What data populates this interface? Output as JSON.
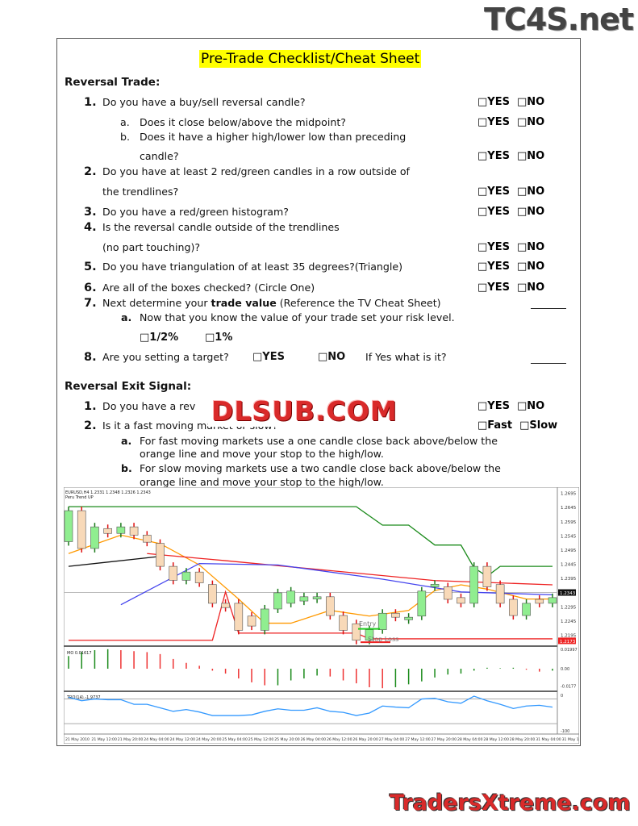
{
  "logos": {
    "top_right": "TC4S.net",
    "overlay": "DLSUB.COM",
    "bottom_right": "TradersXtreme.com"
  },
  "title": "Pre-Trade Checklist/Cheat Sheet",
  "reversal_trade": {
    "heading": "Reversal Trade:",
    "yes": "□YES",
    "no": "□NO",
    "q1": {
      "num": "1.",
      "text": "Do you have a buy/sell reversal candle?"
    },
    "q1a": {
      "num": "a.",
      "text": "Does it close below/above the midpoint?"
    },
    "q1b": {
      "num": "b.",
      "text": "Does it have a higher high/lower low than preceding",
      "text2": "candle?"
    },
    "q2": {
      "num": "2.",
      "text": "Do you have at least 2 red/green candles in a row outside of",
      "text2": "the trendlines?"
    },
    "q3": {
      "num": "3.",
      "text": "Do you have a red/green histogram?"
    },
    "q4": {
      "num": "4.",
      "text": "Is the reversal candle outside of the trendlines",
      "text2": "(no part touching)?"
    },
    "q5": {
      "num": "5.",
      "text": "Do you have triangulation of at least 35 degrees?(Triangle)"
    },
    "q6": {
      "num": "6.",
      "text": "Are all of the boxes checked? (Circle One)"
    },
    "q7": {
      "num": "7.",
      "pre": "Next determine your ",
      "bold": "trade value",
      "post": " (Reference the TV Cheat Sheet)"
    },
    "q7a": {
      "num": "a.",
      "text": "Now that you know the value of your trade set your risk level.",
      "opt1": "□1/2%",
      "opt2": "□1%"
    },
    "q8": {
      "num": "8.",
      "text": "Are you setting a target?",
      "yes": "□YES",
      "no": "□NO",
      "follow": "If Yes what is it?"
    }
  },
  "exit_signal": {
    "heading": "Reversal Exit Signal:",
    "q1": {
      "num": "1.",
      "text": "Do you have a rev",
      "yes": "□YES",
      "no": "□NO"
    },
    "q2": {
      "num": "2.",
      "text": "Is it a fast moving market or slow?",
      "fast": "□Fast",
      "slow": "□Slow"
    },
    "qa": {
      "num": "a.",
      "text": "For fast moving markets use a one candle close back above/below the",
      "text2": "orange line and move your stop to the high/low."
    },
    "qb": {
      "num": "b.",
      "text": "For slow moving markets use a two candle close back above/below the",
      "text2": "orange line and move your stop to the high/low."
    }
  },
  "chart_data": {
    "type": "candlestick",
    "symbol_line": "EURUSD,H4  1.2331 1.2348 1.2326 1.2343",
    "indicator_label": "Peru Trend UP",
    "price_ticks": [
      "1.2695",
      "1.2645",
      "1.2595",
      "1.2545",
      "1.2495",
      "1.2445",
      "1.2395",
      "1.2295",
      "1.2245",
      "1.2195"
    ],
    "current_price": "1.2343",
    "stop_price_label": "1.2173",
    "ylim": [
      1.216,
      1.2705
    ],
    "candles": [
      [
        1.2522,
        1.2631
      ],
      [
        1.2631,
        1.2498
      ],
      [
        1.2498,
        1.2574
      ],
      [
        1.2568,
        1.2551
      ],
      [
        1.2551,
        1.2574
      ],
      [
        1.2574,
        1.2545
      ],
      [
        1.2545,
        1.252
      ],
      [
        1.2516,
        1.2435
      ],
      [
        1.2435,
        1.2386
      ],
      [
        1.2386,
        1.2415
      ],
      [
        1.2415,
        1.2377
      ],
      [
        1.2371,
        1.2305
      ],
      [
        1.2305,
        1.229
      ],
      [
        1.2305,
        1.221
      ],
      [
        1.226,
        1.2225
      ],
      [
        1.221,
        1.2285
      ],
      [
        1.2285,
        1.2342
      ],
      [
        1.2305,
        1.2348
      ],
      [
        1.2313,
        1.2328
      ],
      [
        1.232,
        1.2328
      ],
      [
        1.2328,
        1.2262
      ],
      [
        1.2262,
        1.221
      ],
      [
        1.2233,
        1.2175
      ],
      [
        1.2175,
        1.2212
      ],
      [
        1.2212,
        1.227
      ],
      [
        1.227,
        1.2256
      ],
      [
        1.2247,
        1.2256
      ],
      [
        1.226,
        1.2348
      ],
      [
        1.2363,
        1.2372
      ],
      [
        1.2363,
        1.2319
      ],
      [
        1.2325,
        1.2305
      ],
      [
        1.2305,
        1.2435
      ],
      [
        1.2435,
        1.2363
      ],
      [
        1.2371,
        1.2305
      ],
      [
        1.2319,
        1.2262
      ],
      [
        1.2262,
        1.2305
      ],
      [
        1.2319,
        1.2305
      ],
      [
        1.2305,
        1.2325
      ]
    ],
    "lines": [
      {
        "color": "#1a8a1a",
        "points": [
          [
            0,
            1.2645
          ],
          [
            22,
            1.2645
          ],
          [
            24,
            1.258
          ],
          [
            26,
            1.258
          ],
          [
            28,
            1.251
          ],
          [
            30,
            1.251
          ],
          [
            31,
            1.243
          ],
          [
            32,
            1.24
          ],
          [
            33,
            1.2435
          ],
          [
            37,
            1.2435
          ]
        ]
      },
      {
        "color": "#ff9900",
        "points": [
          [
            0,
            1.248
          ],
          [
            4,
            1.2545
          ],
          [
            7,
            1.2515
          ],
          [
            10,
            1.244
          ],
          [
            13,
            1.232
          ],
          [
            15,
            1.2235
          ],
          [
            17,
            1.2235
          ],
          [
            20,
            1.228
          ],
          [
            23,
            1.226
          ],
          [
            26,
            1.228
          ],
          [
            28,
            1.235
          ],
          [
            30,
            1.237
          ],
          [
            32,
            1.2355
          ],
          [
            35,
            1.232
          ],
          [
            37,
            1.232
          ]
        ]
      },
      {
        "color": "#ee2222",
        "points": [
          [
            6,
            1.248
          ],
          [
            12,
            1.2455
          ],
          [
            20,
            1.242
          ],
          [
            28,
            1.2385
          ],
          [
            37,
            1.237
          ]
        ]
      },
      {
        "color": "#4444ee",
        "points": [
          [
            4,
            1.23
          ],
          [
            10,
            1.2445
          ],
          [
            16,
            1.244
          ],
          [
            24,
            1.239
          ],
          [
            30,
            1.2345
          ],
          [
            37,
            1.2335
          ]
        ]
      },
      {
        "color": "#111111",
        "points": [
          [
            0,
            1.2435
          ],
          [
            7,
            1.247
          ]
        ]
      },
      {
        "color": "#ee2222",
        "points": [
          [
            0,
            1.2175
          ],
          [
            11,
            1.2175
          ],
          [
            12,
            1.2345
          ],
          [
            13,
            1.22
          ],
          [
            22,
            1.22
          ],
          [
            23,
            1.218
          ],
          [
            37,
            1.218
          ]
        ]
      }
    ],
    "annotations": [
      "Entry",
      "Stop Loss"
    ],
    "mo": {
      "label": "MO 0.01617",
      "ticks": [
        "0.01997",
        "0.00",
        "-0.0177"
      ],
      "ylim": [
        -0.0215,
        0.0215
      ],
      "values": [
        0.013,
        0.017,
        0.019,
        0.02,
        0.019,
        0.018,
        0.017,
        0.015,
        0.01,
        0.006,
        0.003,
        -0.002,
        -0.005,
        -0.01,
        -0.014,
        -0.017,
        -0.017,
        -0.012,
        -0.01,
        -0.007,
        -0.008,
        -0.012,
        -0.015,
        -0.019,
        -0.02,
        -0.019,
        -0.016,
        -0.013,
        -0.009,
        -0.006,
        -0.005,
        -0.002,
        0.001,
        0.0005,
        0.001,
        -0.001,
        -0.003,
        -0.002
      ],
      "colors": [
        "g",
        "g",
        "g",
        "g",
        "r",
        "r",
        "r",
        "r",
        "r",
        "r",
        "r",
        "r",
        "r",
        "r",
        "r",
        "r",
        "g",
        "g",
        "g",
        "g",
        "r",
        "r",
        "r",
        "r",
        "r",
        "g",
        "g",
        "g",
        "g",
        "g",
        "g",
        "g",
        "g",
        "g",
        "g",
        "r",
        "r",
        "g"
      ]
    },
    "tro": {
      "label": "TRO(14) -1.9737",
      "ticks": [
        "0",
        "-100"
      ],
      "ylim": [
        -105,
        5
      ],
      "values": [
        -5,
        -15,
        -10,
        -12,
        -12,
        -25,
        -25,
        -35,
        -45,
        -40,
        -47,
        -57,
        -57,
        -57,
        -55,
        -45,
        -38,
        -42,
        -42,
        -35,
        -45,
        -48,
        -57,
        -50,
        -30,
        -33,
        -35,
        -10,
        -8,
        -18,
        -22,
        -2,
        -15,
        -25,
        -37,
        -30,
        -28,
        -33
      ]
    },
    "x_ticks": [
      "21 May 2010",
      "21 May 12:00",
      "21 May 20:00",
      "24 May 04:00",
      "24 May 12:00",
      "24 May 20:00",
      "25 May 04:00",
      "25 May 12:00",
      "25 May 20:00",
      "26 May 04:00",
      "26 May 12:00",
      "26 May 20:00",
      "27 May 04:00",
      "27 May 12:00",
      "27 May 20:00",
      "28 May 04:00",
      "28 May 12:00",
      "28 May 20:00",
      "31 May 04:00",
      "31 May 1"
    ]
  }
}
